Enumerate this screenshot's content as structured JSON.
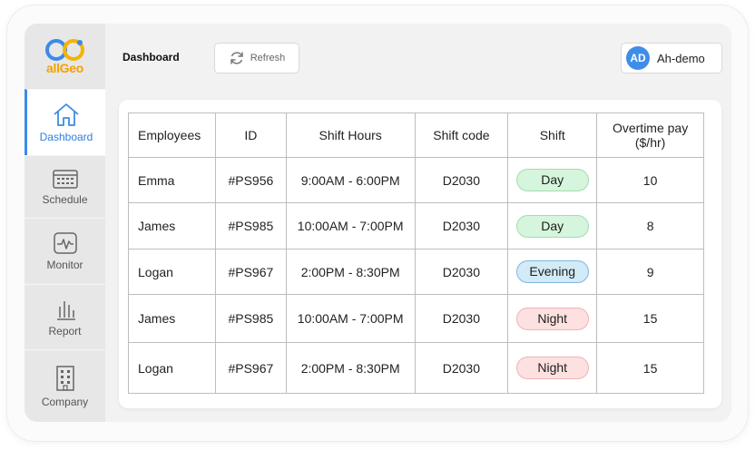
{
  "brand": {
    "name": "allGeo",
    "primary": "#3c8ae8",
    "accent": "#f4a000"
  },
  "sidebar": {
    "items": [
      {
        "label": "Dashboard",
        "icon": "home-icon",
        "active": true
      },
      {
        "label": "Schedule",
        "icon": "calendar-icon",
        "active": false
      },
      {
        "label": "Monitor",
        "icon": "pulse-monitor-icon",
        "active": false
      },
      {
        "label": "Report",
        "icon": "bar-chart-icon",
        "active": false
      },
      {
        "label": "Company",
        "icon": "building-icon",
        "active": false
      }
    ]
  },
  "header": {
    "title": "Dashboard",
    "refresh_label": "Refresh",
    "user": {
      "initials": "AD",
      "name": "Ah-demo"
    }
  },
  "table": {
    "headers": [
      "Employees",
      "ID",
      "Shift Hours",
      "Shift code",
      "Shift",
      "Overtime pay",
      "($/hr)"
    ],
    "rows": [
      {
        "employee": "Emma",
        "id": "#PS956",
        "hours": "9:00AM - 6:00PM",
        "code": "D2030",
        "shift": "Day",
        "overtime": "10"
      },
      {
        "employee": "James",
        "id": "#PS985",
        "hours": "10:00AM - 7:00PM",
        "code": "D2030",
        "shift": "Day",
        "overtime": "8"
      },
      {
        "employee": "Logan",
        "id": "#PS967",
        "hours": "2:00PM - 8:30PM",
        "code": "D2030",
        "shift": "Evening",
        "overtime": "9"
      },
      {
        "employee": "James",
        "id": "#PS985",
        "hours": "10:00AM - 7:00PM",
        "code": "D2030",
        "shift": "Night",
        "overtime": "15"
      },
      {
        "employee": "Logan",
        "id": "#PS967",
        "hours": "2:00PM - 8:30PM",
        "code": "D2030",
        "shift": "Night",
        "overtime": "15"
      }
    ]
  },
  "shift_colors": {
    "Day": "#d5f5dc",
    "Evening": "#d3eaf7",
    "Night": "#fde0e0"
  }
}
